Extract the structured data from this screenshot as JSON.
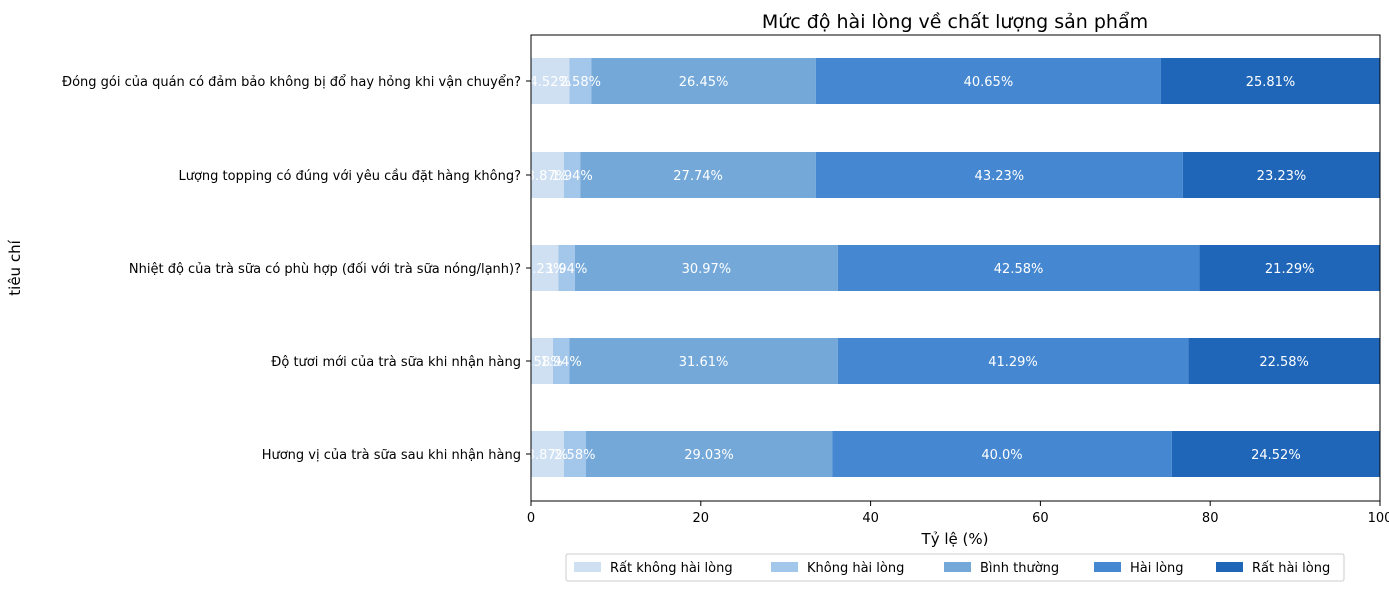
{
  "chart_data": {
    "type": "bar",
    "orientation": "horizontal",
    "stacked": true,
    "title": "Mức độ hài lòng về chất lượng sản phẩm",
    "xlabel": "Tỷ lệ (%)",
    "ylabel": "tiêu chí",
    "xlim": [
      0,
      100
    ],
    "xticks": [
      0,
      20,
      40,
      60,
      80,
      100
    ],
    "grid": false,
    "legend_position": "bottom-right",
    "categories": [
      "Đóng gói của quán có đảm bảo không bị đổ hay hỏng khi vận chuyển?",
      "Lượng topping có đúng với yêu cầu đặt hàng không?",
      "Nhiệt độ của trà sữa có phù hợp (đối với trà sữa nóng/lạnh)?",
      "Độ tươi mới của trà sữa khi nhận hàng",
      "Hương vị của trà sữa sau khi nhận hàng"
    ],
    "series": [
      {
        "name": "Rất không hài lòng",
        "color": "#cfe0f2",
        "values": [
          4.52,
          3.87,
          3.23,
          2.58,
          3.87
        ]
      },
      {
        "name": "Không hài lòng",
        "color": "#a3c6eb",
        "values": [
          2.58,
          1.94,
          1.94,
          1.94,
          2.58
        ]
      },
      {
        "name": "Bình thường",
        "color": "#73a8d8",
        "values": [
          26.45,
          27.74,
          30.97,
          31.61,
          29.03
        ]
      },
      {
        "name": "Hài lòng",
        "color": "#4587d1",
        "values": [
          40.65,
          43.23,
          42.58,
          41.29,
          40.0
        ]
      },
      {
        "name": "Rất hài lòng",
        "color": "#1f66b9",
        "values": [
          25.81,
          23.23,
          21.29,
          22.58,
          24.52
        ]
      }
    ],
    "value_labels": [
      [
        "4.52%",
        "2.58%",
        "26.45%",
        "40.65%",
        "25.81%"
      ],
      [
        "3.87%",
        "1.94%",
        "27.74%",
        "43.23%",
        "23.23%"
      ],
      [
        "3.23%",
        "1.94%",
        "30.97%",
        "42.58%",
        "21.29%"
      ],
      [
        "2.58%",
        "1.94%",
        "31.61%",
        "41.29%",
        "22.58%"
      ],
      [
        "3.87%",
        "2.58%",
        "29.03%",
        "40.0%",
        "24.52%"
      ]
    ]
  }
}
